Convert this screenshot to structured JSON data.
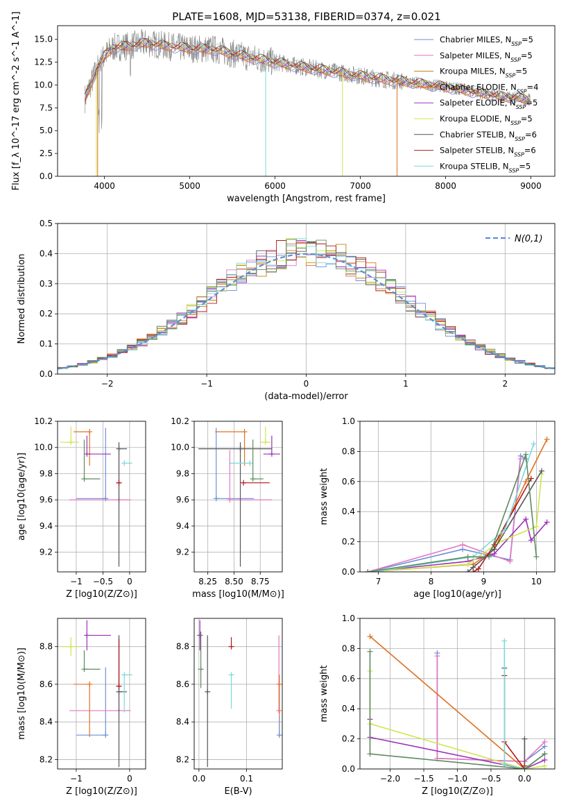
{
  "figure": {
    "title": "PLATE=1608, MJD=53138, FIBERID=0374, z=0.021"
  },
  "series_legend": [
    {
      "name": "Chabrier MILES, N",
      "sub": "SSP",
      "eq": "=5",
      "color": "#6a8fd8"
    },
    {
      "name": "Salpeter MILES, N",
      "sub": "SSP",
      "eq": "=5",
      "color": "#e377c2"
    },
    {
      "name": "Kroupa MILES, N",
      "sub": "SSP",
      "eq": "=5",
      "color": "#b8860b"
    },
    {
      "name": "Chabrier ELODIE, N",
      "sub": "SSP",
      "eq": "=4",
      "color": "#e07020"
    },
    {
      "name": "Salpeter ELODIE, N",
      "sub": "SSP",
      "eq": "=5",
      "color": "#9b30b8"
    },
    {
      "name": "Kroupa ELODIE, N",
      "sub": "SSP",
      "eq": "=5",
      "color": "#cfe64a"
    },
    {
      "name": "Chabrier STELIB, N",
      "sub": "SSP",
      "eq": "=6",
      "color": "#555555"
    },
    {
      "name": "Salpeter STELIB, N",
      "sub": "SSP",
      "eq": "=6",
      "color": "#b01818"
    },
    {
      "name": "Kroupa STELIB, N",
      "sub": "SSP",
      "eq": "=5",
      "color": "#7ad8dc"
    }
  ],
  "chart_data": [
    {
      "type": "line",
      "xlabel": "wavelength [Angstrom, rest frame]",
      "ylabel": "Flux [f_λ 10^-17 erg cm^-2 s^-1 A^-1]",
      "xlim": [
        3450,
        9280
      ],
      "ylim": [
        0,
        16.5
      ],
      "xticks": [
        4000,
        5000,
        6000,
        7000,
        8000,
        9000
      ],
      "yticks": [
        0.0,
        2.5,
        5.0,
        7.5,
        10.0,
        12.5,
        15.0
      ],
      "continuum": {
        "x": [
          3770,
          3900,
          4000,
          4100,
          4300,
          4500,
          4700,
          5000,
          5300,
          5600,
          6000,
          6300,
          6600,
          7000,
          7300,
          7600,
          7800,
          8000,
          8300,
          8600,
          8800,
          9000
        ],
        "y": [
          8.5,
          11.5,
          13.2,
          14.1,
          14.3,
          14.6,
          14.3,
          14.0,
          13.9,
          13.2,
          12.5,
          12.0,
          11.6,
          11.0,
          10.6,
          10.3,
          10.0,
          9.8,
          9.3,
          8.8,
          8.6,
          8.4
        ]
      },
      "observed_line_color": "#808080",
      "grid": false,
      "legend_position": "upper right"
    },
    {
      "type": "histogram",
      "xlabel": "(data-model)/error",
      "ylabel": "Normed distribution",
      "xlim": [
        -2.5,
        2.5
      ],
      "ylim": [
        0,
        0.5
      ],
      "xticks": [
        -2,
        -1,
        0,
        1,
        2
      ],
      "yticks": [
        0.0,
        0.1,
        0.2,
        0.3,
        0.4,
        0.5
      ],
      "bin_width": 0.1,
      "reference_curve": {
        "name": "N(0,1)",
        "mu": 0,
        "sigma": 1,
        "color": "#5b8dd9"
      },
      "grid": true,
      "legend_position": "upper right"
    },
    {
      "type": "scatter",
      "xlabel": "Z [log10(Z/Z⊙)]",
      "ylabel": "age [log10(age/yr)]",
      "xlim": [
        -1.35,
        0.3
      ],
      "ylim": [
        9.05,
        10.2
      ],
      "xticks": [
        -1,
        -0.5,
        0
      ],
      "yticks": [
        9.2,
        9.4,
        9.6,
        9.8,
        10.0,
        10.2
      ],
      "points": [
        {
          "color": "#6a8fd8",
          "x": -0.45,
          "y": 9.61,
          "xerr": [
            0.55,
            0.0
          ],
          "yerr": [
            0.0,
            0.54
          ]
        },
        {
          "color": "#e377c2",
          "x": -0.2,
          "y": 9.6,
          "xerr": [
            0.93,
            0.22
          ],
          "yerr": [
            0.0,
            0.38
          ]
        },
        {
          "color": "#e07020",
          "x": -0.75,
          "y": 10.12,
          "xerr": [
            0.3,
            0.0
          ],
          "yerr": [
            0.26,
            0.0
          ]
        },
        {
          "color": "#9b30b8",
          "x": -0.8,
          "y": 9.95,
          "xerr": [
            0.0,
            0.45
          ],
          "yerr": [
            0.0,
            0.14
          ]
        },
        {
          "color": "#cfe64a",
          "x": -1.1,
          "y": 10.04,
          "xerr": [
            0.2,
            0.15
          ],
          "yerr": [
            0.0,
            0.12
          ]
        },
        {
          "color": "#555555",
          "x": -0.2,
          "y": 9.99,
          "xerr": [
            0.0,
            0.15
          ],
          "yerr": [
            0.9,
            0.05
          ]
        },
        {
          "color": "#b01818",
          "x": -0.2,
          "y": 9.73,
          "xerr": [
            0.05,
            0.05
          ],
          "yerr": [
            0.0,
            0.0
          ]
        },
        {
          "color": "#7ad8dc",
          "x": -0.1,
          "y": 9.88,
          "xerr": [
            0.0,
            0.15
          ],
          "yerr": [
            0.0,
            0.0
          ]
        },
        {
          "color": "#5e8a5e",
          "x": -0.85,
          "y": 9.76,
          "xerr": [
            0.0,
            0.3
          ],
          "yerr": [
            0.0,
            0.3
          ]
        }
      ],
      "grid": true
    },
    {
      "type": "scatter",
      "xlabel": "mass [log10(M/M⊙)]",
      "ylabel": "",
      "xlim": [
        8.12,
        8.96
      ],
      "ylim": [
        9.05,
        10.2
      ],
      "xticks": [
        8.25,
        8.5,
        8.75
      ],
      "yticks": [
        9.2,
        9.4,
        9.6,
        9.8,
        10.0,
        10.2
      ],
      "points": [
        {
          "color": "#6a8fd8",
          "x": 8.33,
          "y": 9.61,
          "xerr": [
            0.0,
            0.36
          ],
          "yerr": [
            0.0,
            0.54
          ]
        },
        {
          "color": "#e377c2",
          "x": 8.46,
          "y": 9.6,
          "xerr": [
            0.0,
            0.4
          ],
          "yerr": [
            0.0,
            0.38
          ]
        },
        {
          "color": "#e07020",
          "x": 8.6,
          "y": 10.12,
          "xerr": [
            0.28,
            0.0
          ],
          "yerr": [
            0.26,
            0.0
          ]
        },
        {
          "color": "#9b30b8",
          "x": 8.86,
          "y": 9.95,
          "xerr": [
            0.08,
            0.08
          ],
          "yerr": [
            0.0,
            0.14
          ]
        },
        {
          "color": "#cfe64a",
          "x": 8.8,
          "y": 10.04,
          "xerr": [
            0.05,
            0.05
          ],
          "yerr": [
            0.0,
            0.12
          ]
        },
        {
          "color": "#555555",
          "x": 8.56,
          "y": 9.99,
          "xerr": [
            0.4,
            0.3
          ],
          "yerr": [
            0.9,
            0.05
          ]
        },
        {
          "color": "#b01818",
          "x": 8.59,
          "y": 9.73,
          "xerr": [
            0.0,
            0.25
          ],
          "yerr": [
            0.0,
            0.0
          ]
        },
        {
          "color": "#7ad8dc",
          "x": 8.65,
          "y": 9.88,
          "xerr": [
            0.2,
            0.0
          ],
          "yerr": [
            0.0,
            0.0
          ]
        },
        {
          "color": "#5e8a5e",
          "x": 8.68,
          "y": 9.76,
          "xerr": [
            0.0,
            0.1
          ],
          "yerr": [
            0.0,
            0.3
          ]
        }
      ],
      "grid": true
    },
    {
      "type": "line",
      "xlabel": "age [log10(age/yr)]",
      "ylabel": "mass weight",
      "xlim": [
        6.65,
        10.35
      ],
      "ylim": [
        0,
        1.0
      ],
      "xticks": [
        7,
        8,
        9,
        10
      ],
      "yticks": [
        0.0,
        0.2,
        0.4,
        0.6,
        0.8,
        1.0
      ],
      "series": [
        {
          "color": "#6a8fd8",
          "x": [
            6.8,
            8.6,
            9.5,
            9.7,
            9.8
          ],
          "y": [
            0.0,
            0.15,
            0.08,
            0.77,
            0.75
          ]
        },
        {
          "color": "#e377c2",
          "x": [
            6.8,
            8.6,
            9.5,
            9.7
          ],
          "y": [
            0.0,
            0.18,
            0.07,
            0.75
          ]
        },
        {
          "color": "#e07020",
          "x": [
            6.8,
            8.8,
            9.2,
            9.8,
            10.2
          ],
          "y": [
            0.0,
            0.05,
            0.15,
            0.6,
            0.88
          ]
        },
        {
          "color": "#9b30b8",
          "x": [
            6.8,
            8.7,
            9.2,
            9.8,
            9.9,
            10.2
          ],
          "y": [
            0.0,
            0.07,
            0.12,
            0.35,
            0.21,
            0.33
          ]
        },
        {
          "color": "#cfe64a",
          "x": [
            6.8,
            8.7,
            9.3,
            10.0,
            10.1
          ],
          "y": [
            0.0,
            0.05,
            0.2,
            0.3,
            0.65
          ]
        },
        {
          "color": "#555555",
          "x": [
            8.7,
            8.8,
            9.2,
            10.1
          ],
          "y": [
            0.0,
            0.03,
            0.15,
            0.67
          ]
        },
        {
          "color": "#b01818",
          "x": [
            8.8,
            8.9,
            9.2,
            9.9
          ],
          "y": [
            0.0,
            0.02,
            0.18,
            0.62
          ]
        },
        {
          "color": "#7ad8dc",
          "x": [
            6.9,
            8.8,
            9.4,
            9.95
          ],
          "y": [
            0.0,
            0.1,
            0.28,
            0.85
          ]
        },
        {
          "color": "#5e8a5e",
          "x": [
            6.8,
            8.7,
            9.1,
            9.8,
            10.0
          ],
          "y": [
            0.0,
            0.1,
            0.1,
            0.78,
            0.1
          ]
        }
      ],
      "grid": true
    },
    {
      "type": "scatter",
      "xlabel": "Z [log10(Z/Z⊙)]",
      "ylabel": "mass [log10(M/M⊙)]",
      "xlim": [
        -1.35,
        0.3
      ],
      "ylim": [
        8.15,
        8.95
      ],
      "xticks": [
        -1,
        0
      ],
      "yticks": [
        8.2,
        8.4,
        8.6,
        8.8
      ],
      "points": [
        {
          "color": "#6a8fd8",
          "x": -0.45,
          "y": 8.33,
          "xerr": [
            0.55,
            0.0
          ],
          "yerr": [
            0.0,
            0.36
          ]
        },
        {
          "color": "#e377c2",
          "x": -0.2,
          "y": 8.46,
          "xerr": [
            0.93,
            0.22
          ],
          "yerr": [
            0.0,
            0.4
          ]
        },
        {
          "color": "#e07020",
          "x": -0.75,
          "y": 8.6,
          "xerr": [
            0.3,
            0.0
          ],
          "yerr": [
            0.28,
            0.0
          ]
        },
        {
          "color": "#9b30b8",
          "x": -0.8,
          "y": 8.86,
          "xerr": [
            0.0,
            0.45
          ],
          "yerr": [
            0.08,
            0.08
          ]
        },
        {
          "color": "#cfe64a",
          "x": -1.1,
          "y": 8.8,
          "xerr": [
            0.2,
            0.15
          ],
          "yerr": [
            0.05,
            0.05
          ]
        },
        {
          "color": "#555555",
          "x": -0.2,
          "y": 8.56,
          "xerr": [
            0.0,
            0.15
          ],
          "yerr": [
            0.4,
            0.3
          ]
        },
        {
          "color": "#b01818",
          "x": -0.2,
          "y": 8.59,
          "xerr": [
            0.05,
            0.05
          ],
          "yerr": [
            0.0,
            0.25
          ]
        },
        {
          "color": "#7ad8dc",
          "x": -0.1,
          "y": 8.65,
          "xerr": [
            0.0,
            0.15
          ],
          "yerr": [
            0.2,
            0.0
          ]
        },
        {
          "color": "#5e8a5e",
          "x": -0.85,
          "y": 8.68,
          "xerr": [
            0.0,
            0.3
          ],
          "yerr": [
            0.0,
            0.1
          ]
        }
      ],
      "grid": true
    },
    {
      "type": "scatter",
      "xlabel": "E(B-V)",
      "ylabel": "",
      "xlim": [
        -0.01,
        0.175
      ],
      "ylim": [
        8.15,
        8.95
      ],
      "xticks": [
        0.0,
        0.1
      ],
      "yticks": [
        8.2,
        8.4,
        8.6,
        8.8
      ],
      "points": [
        {
          "color": "#9b30b8",
          "x": 0.002,
          "y": 8.86,
          "yerr": [
            0.08,
            0.08
          ]
        },
        {
          "color": "#5e8a5e",
          "x": 0.004,
          "y": 8.68,
          "yerr": [
            0.1,
            0.2
          ]
        },
        {
          "color": "#555555",
          "x": 0.018,
          "y": 8.56,
          "yerr": [
            0.4,
            0.3
          ]
        },
        {
          "color": "#b01818",
          "x": 0.068,
          "y": 8.8,
          "yerr": [
            0.0,
            0.05
          ]
        },
        {
          "color": "#7ad8dc",
          "x": 0.068,
          "y": 8.65,
          "yerr": [
            0.18,
            0.0
          ]
        },
        {
          "color": "#e377c2",
          "x": 0.168,
          "y": 8.46,
          "yerr": [
            0.0,
            0.4
          ]
        },
        {
          "color": "#e07020",
          "x": 0.169,
          "y": 8.6,
          "yerr": [
            0.28,
            0.05
          ]
        },
        {
          "color": "#6a8fd8",
          "x": 0.169,
          "y": 8.33,
          "yerr": [
            0.0,
            0.1
          ]
        }
      ],
      "grid": true
    },
    {
      "type": "line",
      "xlabel": "Z [log10(Z/Z⊙)]",
      "ylabel": "mass weight",
      "xlim": [
        -2.45,
        0.45
      ],
      "ylim": [
        0,
        1.0
      ],
      "xticks": [
        -2.0,
        -1.5,
        -1.0,
        -0.5,
        0.0
      ],
      "yticks": [
        0.0,
        0.2,
        0.4,
        0.6,
        0.8,
        1.0
      ],
      "series": [
        {
          "color": "#6a8fd8",
          "x": [
            -1.3,
            -1.3,
            0.0,
            0.3
          ],
          "y": [
            0.77,
            0.07,
            0.05,
            0.15
          ]
        },
        {
          "color": "#e377c2",
          "x": [
            -1.3,
            -1.3,
            0.0,
            0.3
          ],
          "y": [
            0.75,
            0.07,
            0.05,
            0.18
          ]
        },
        {
          "color": "#e07020",
          "x": [
            -2.3,
            0.0,
            0.3
          ],
          "y": [
            0.88,
            0.0,
            0.1
          ]
        },
        {
          "color": "#9b30b8",
          "x": [
            -2.3,
            -2.3,
            0.0,
            0.3
          ],
          "y": [
            0.33,
            0.21,
            0.0,
            0.06
          ]
        },
        {
          "color": "#cfe64a",
          "x": [
            -2.3,
            -2.3,
            0.0,
            0.3
          ],
          "y": [
            0.65,
            0.3,
            0.0,
            0.02
          ]
        },
        {
          "color": "#555555",
          "x": [
            -0.3,
            -0.3,
            0.0,
            0.0
          ],
          "y": [
            0.67,
            0.03,
            0.0,
            0.2
          ]
        },
        {
          "color": "#b01818",
          "x": [
            -0.3,
            -0.3,
            0.0,
            0.0
          ],
          "y": [
            0.62,
            0.18,
            0.0,
            0.02
          ]
        },
        {
          "color": "#7ad8dc",
          "x": [
            -0.3,
            -0.3,
            0.0,
            0.3
          ],
          "y": [
            0.85,
            0.03,
            0.0,
            0.1
          ]
        },
        {
          "color": "#5e8a5e",
          "x": [
            -2.3,
            -2.3,
            0.0,
            0.3
          ],
          "y": [
            0.78,
            0.1,
            0.0,
            0.1
          ]
        }
      ],
      "grid": true
    }
  ]
}
